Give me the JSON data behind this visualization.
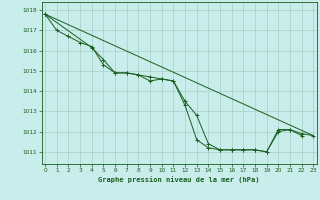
{
  "title": "Graphe pression niveau de la mer (hPa)",
  "background_color": "#c8edea",
  "grid_color": "#a8cec8",
  "line_color": "#1a5e20",
  "x_ticks": [
    0,
    1,
    2,
    3,
    4,
    5,
    6,
    7,
    8,
    9,
    10,
    11,
    12,
    13,
    14,
    15,
    16,
    17,
    18,
    19,
    20,
    21,
    22,
    23
  ],
  "y_ticks": [
    1011,
    1012,
    1013,
    1014,
    1015,
    1016,
    1017,
    1018
  ],
  "xlim": [
    -0.3,
    23.3
  ],
  "ylim": [
    1010.4,
    1018.4
  ],
  "line1": [
    [
      0,
      1017.8
    ],
    [
      1,
      1017.0
    ],
    [
      2,
      1016.7
    ],
    [
      3,
      1016.4
    ],
    [
      4,
      1016.2
    ],
    [
      5,
      1015.3
    ],
    [
      6,
      1014.9
    ],
    [
      7,
      1014.9
    ],
    [
      8,
      1014.8
    ],
    [
      9,
      1014.5
    ],
    [
      10,
      1014.6
    ],
    [
      11,
      1014.5
    ],
    [
      12,
      1013.3
    ],
    [
      13,
      1011.6
    ],
    [
      14,
      1011.2
    ],
    [
      15,
      1011.1
    ],
    [
      16,
      1011.1
    ],
    [
      17,
      1011.1
    ],
    [
      18,
      1011.1
    ],
    [
      19,
      1011.0
    ],
    [
      20,
      1012.1
    ],
    [
      21,
      1012.1
    ],
    [
      22,
      1011.8
    ]
  ],
  "line2": [
    [
      0,
      1017.8
    ],
    [
      4,
      1016.15
    ],
    [
      5,
      1015.55
    ],
    [
      6,
      1014.9
    ],
    [
      7,
      1014.9
    ],
    [
      8,
      1014.8
    ],
    [
      9,
      1014.7
    ],
    [
      10,
      1014.6
    ],
    [
      11,
      1014.5
    ],
    [
      12,
      1013.5
    ],
    [
      13,
      1012.8
    ],
    [
      14,
      1011.4
    ],
    [
      15,
      1011.1
    ],
    [
      16,
      1011.1
    ],
    [
      17,
      1011.1
    ],
    [
      18,
      1011.1
    ],
    [
      19,
      1011.0
    ],
    [
      20,
      1012.0
    ],
    [
      21,
      1012.1
    ],
    [
      22,
      1011.9
    ],
    [
      23,
      1011.8
    ]
  ],
  "line3_straight": [
    [
      0,
      1017.8
    ],
    [
      23,
      1011.8
    ]
  ]
}
